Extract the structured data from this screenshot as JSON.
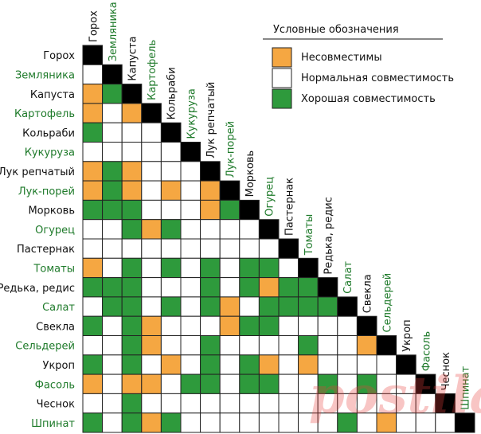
{
  "chart_data": {
    "type": "heatmap",
    "title": "",
    "subtitle": "",
    "legend": {
      "title": "Условные обозначения",
      "placement": "top-right",
      "entries": [
        {
          "code": "B",
          "label": "Несовместимы",
          "color": "#f5a742"
        },
        {
          "code": "W",
          "label": "Нормальная совместимость",
          "color": "#ffffff"
        },
        {
          "code": "G",
          "label": "Хорошая совместимость",
          "color": "#2e9a3c"
        }
      ]
    },
    "diagonal_color": "#000000",
    "label_colors": {
      "black": "#111111",
      "green": "#1e7a2a"
    },
    "crops": [
      {
        "name": "Горох",
        "color": "black"
      },
      {
        "name": "Земляника",
        "color": "green"
      },
      {
        "name": "Капуста",
        "color": "black"
      },
      {
        "name": "Картофель",
        "color": "green"
      },
      {
        "name": "Кольраби",
        "color": "black"
      },
      {
        "name": "Кукуруза",
        "color": "green"
      },
      {
        "name": "Лук репчатый",
        "color": "black"
      },
      {
        "name": "Лук-порей",
        "color": "green"
      },
      {
        "name": "Морковь",
        "color": "black"
      },
      {
        "name": "Огурец",
        "color": "green"
      },
      {
        "name": "Пастернак",
        "color": "black"
      },
      {
        "name": "Томаты",
        "color": "green"
      },
      {
        "name": "Редька, редис",
        "color": "black"
      },
      {
        "name": "Салат",
        "color": "green"
      },
      {
        "name": "Свекла",
        "color": "black"
      },
      {
        "name": "Сельдерей",
        "color": "green"
      },
      {
        "name": "Укроп",
        "color": "black"
      },
      {
        "name": "Фасоль",
        "color": "green"
      },
      {
        "name": "Чеснок",
        "color": "black"
      },
      {
        "name": "Шпинат",
        "color": "green"
      }
    ],
    "matrix_rows": [
      "",
      "W",
      "BG",
      "BWB",
      "GWWW",
      "WWWWW",
      "BGBWWW",
      "BGBWBWB",
      "GGGWWWBG",
      "WWGBGWWWW",
      "WWWWWWWWWW",
      "BWGWGWGWGGW",
      "GGGWWWGWGBGG",
      "WGGWGWGBWGGGG",
      "GWGBWWWBGGWWWW",
      "WWGBWWGWWWWGWWB",
      "GWGWBWGWGBWBWWWW",
      "BWBBWGGWGGWWGWGWW",
      "WWGWWWWWWWWWWWWWWW",
      "GWGBGWWWWWWWWGWBWWW"
    ],
    "watermark": "postila.ru"
  }
}
